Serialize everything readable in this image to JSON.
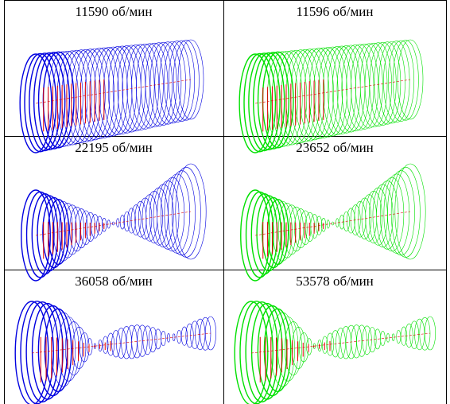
{
  "table": {
    "rows": [
      [
        "11590 об/мин",
        "11596 об/мин"
      ],
      [
        "22195 об/мин",
        "23652 об/мин"
      ],
      [
        "36058 об/мин",
        "53578 об/мин"
      ]
    ]
  }
}
